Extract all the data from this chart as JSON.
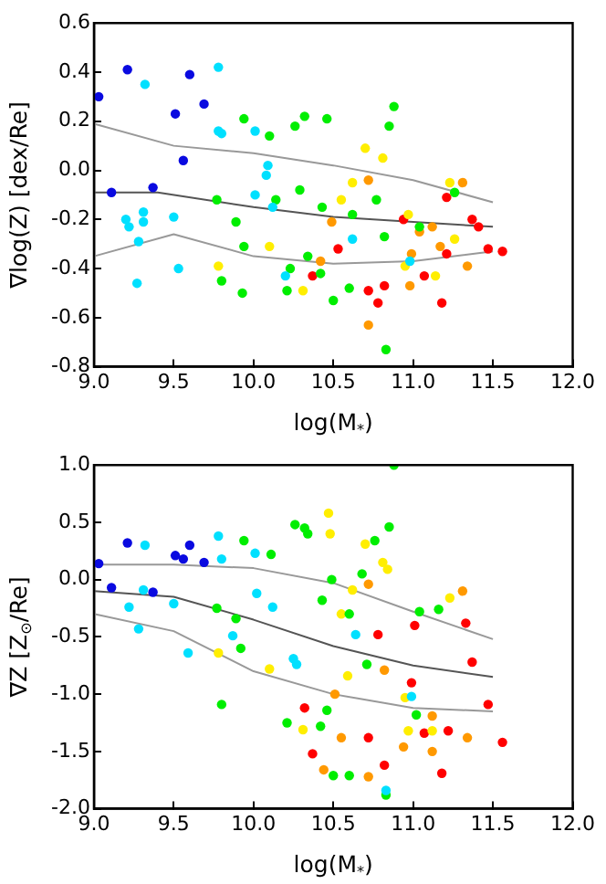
{
  "chart_data": [
    {
      "type": "scatter",
      "xlabel": "log(M$_{*}$)",
      "ylabel": "∇log(Z) [dex/Re]",
      "xlim": [
        9.0,
        12.0
      ],
      "ylim": [
        -0.8,
        0.6
      ],
      "grid": false,
      "legend": false,
      "marker": "circle",
      "xticks": [
        {
          "value": 9,
          "label": "9.0"
        },
        {
          "value": 9.5,
          "label": "9.5"
        },
        {
          "value": 10,
          "label": "10.0"
        },
        {
          "value": 10.5,
          "label": "10.5"
        },
        {
          "value": 11,
          "label": "11.0"
        },
        {
          "value": 11.5,
          "label": "11.5"
        },
        {
          "value": 12,
          "label": "12.0"
        }
      ],
      "yticks": [
        {
          "value": -0.8,
          "label": "-0.8"
        },
        {
          "value": -0.6,
          "label": "-0.6"
        },
        {
          "value": -0.4,
          "label": "-0.4"
        },
        {
          "value": -0.2,
          "label": "-0.2"
        },
        {
          "value": 0,
          "label": "0.0"
        },
        {
          "value": 0.2,
          "label": "0.2"
        },
        {
          "value": 0.4,
          "label": "0.4"
        },
        {
          "value": 0.6,
          "label": "0.6"
        }
      ],
      "series": [
        {
          "color": "#0a0ae0",
          "x": [
            9.03,
            9.21,
            9.51,
            9.56,
            9.6,
            9.69,
            9.11,
            9.37
          ],
          "values": [
            0.3,
            0.41,
            0.23,
            0.04,
            0.39,
            0.27,
            -0.09,
            -0.07
          ]
        },
        {
          "color": "#00e0ff",
          "x": [
            9.32,
            9.78,
            9.78,
            9.8,
            10.01,
            9.22,
            9.31,
            9.31,
            9.5,
            10.09,
            10.08,
            10.01,
            10.12,
            9.2,
            9.28,
            9.27,
            9.53,
            10.2,
            10.98,
            10.62
          ],
          "values": [
            0.35,
            0.42,
            0.16,
            0.15,
            0.16,
            -0.23,
            -0.17,
            -0.21,
            -0.19,
            0.02,
            -0.02,
            -0.1,
            -0.15,
            -0.2,
            -0.29,
            -0.46,
            -0.4,
            -0.43,
            -0.37,
            -0.28
          ]
        },
        {
          "color": "#00ee00",
          "x": [
            9.94,
            10.03,
            10.1,
            10.26,
            10.32,
            10.46,
            10.88,
            10.85,
            9.77,
            9.89,
            10.14,
            10.29,
            10.43,
            10.62,
            10.77,
            11.04,
            11.26,
            9.8,
            9.93,
            9.94,
            10.23,
            10.21,
            10.5,
            10.6,
            10.83,
            10.42,
            10.34,
            10.82
          ],
          "values": [
            0.21,
            null,
            0.14,
            0.18,
            0.22,
            0.21,
            0.26,
            0.18,
            -0.12,
            -0.21,
            -0.12,
            -0.08,
            -0.15,
            -0.18,
            -0.12,
            -0.23,
            -0.09,
            -0.45,
            -0.5,
            -0.31,
            -0.4,
            -0.49,
            -0.53,
            -0.48,
            -0.73,
            -0.42,
            -0.35,
            -0.27
          ]
        },
        {
          "color": "#ffee00",
          "x": [
            10.7,
            10.81,
            10.62,
            10.55,
            10.97,
            11.23,
            10.1,
            9.78,
            10.31,
            10.95,
            11.14,
            11.26
          ],
          "values": [
            0.09,
            0.05,
            -0.05,
            -0.12,
            -0.18,
            -0.05,
            -0.31,
            -0.39,
            -0.49,
            -0.39,
            -0.43,
            -0.28
          ]
        },
        {
          "color": "#ff9900",
          "x": [
            10.72,
            11.31,
            10.49,
            11.04,
            11.12,
            10.42,
            10.72,
            10.98,
            11.17,
            11.34,
            10.99
          ],
          "values": [
            -0.04,
            -0.05,
            -0.21,
            -0.25,
            -0.23,
            -0.37,
            -0.63,
            -0.47,
            -0.31,
            -0.39,
            -0.34
          ]
        },
        {
          "color": "#ff0000",
          "x": [
            11.21,
            10.94,
            11.37,
            11.41,
            10.37,
            10.72,
            10.82,
            10.78,
            11.07,
            11.18,
            11.47,
            11.56,
            11.21,
            10.53
          ],
          "values": [
            -0.11,
            -0.2,
            -0.2,
            -0.23,
            -0.43,
            -0.49,
            -0.47,
            -0.54,
            -0.43,
            -0.54,
            -0.32,
            -0.33,
            -0.34,
            -0.32
          ]
        },
        {
          "type": "line",
          "marker": "none",
          "color": "#999999",
          "x": [
            9.0,
            9.5,
            10.0,
            10.5,
            11.0,
            11.5
          ],
          "values": [
            0.19,
            0.1,
            0.07,
            0.02,
            -0.04,
            -0.13
          ]
        },
        {
          "type": "line",
          "marker": "none",
          "color": "#555555",
          "x": [
            9.0,
            9.4,
            10.0,
            10.5,
            11.0,
            11.5
          ],
          "values": [
            -0.09,
            -0.09,
            -0.15,
            -0.19,
            -0.21,
            -0.23
          ]
        },
        {
          "type": "line",
          "marker": "none",
          "color": "#999999",
          "x": [
            9.0,
            9.5,
            10.0,
            10.5,
            11.0,
            11.5
          ],
          "values": [
            -0.35,
            -0.26,
            -0.35,
            -0.38,
            -0.37,
            -0.33
          ]
        }
      ]
    },
    {
      "type": "scatter",
      "xlabel": "log(M$_{*}$)",
      "ylabel": "∇Z [Z$_{⊙}$/Re]",
      "xlim": [
        9.0,
        12.0
      ],
      "ylim": [
        -2.0,
        1.0
      ],
      "grid": false,
      "legend": false,
      "marker": "circle",
      "xticks": [
        {
          "value": 9,
          "label": "9.0"
        },
        {
          "value": 9.5,
          "label": "9.5"
        },
        {
          "value": 10,
          "label": "10.0"
        },
        {
          "value": 10.5,
          "label": "10.5"
        },
        {
          "value": 11,
          "label": "11.0"
        },
        {
          "value": 11.5,
          "label": "11.5"
        },
        {
          "value": 12,
          "label": "12.0"
        }
      ],
      "yticks": [
        {
          "value": -2,
          "label": "-2.0"
        },
        {
          "value": -1.5,
          "label": "-1.5"
        },
        {
          "value": -1,
          "label": "-1.0"
        },
        {
          "value": -0.5,
          "label": "-0.5"
        },
        {
          "value": 0,
          "label": "0.0"
        },
        {
          "value": 0.5,
          "label": "0.5"
        },
        {
          "value": 1,
          "label": "1.0"
        }
      ],
      "series": [
        {
          "color": "#0a0ae0",
          "x": [
            9.03,
            9.21,
            9.51,
            9.56,
            9.6,
            9.69,
            9.11,
            9.37
          ],
          "values": [
            0.14,
            0.32,
            0.21,
            0.18,
            0.3,
            0.15,
            -0.07,
            -0.11
          ]
        },
        {
          "color": "#00e0ff",
          "x": [
            9.32,
            9.78,
            9.8,
            10.01,
            9.22,
            9.28,
            9.31,
            9.5,
            9.59,
            9.87,
            10.02,
            10.12,
            10.27,
            10.64,
            10.25,
            10.83,
            10.99
          ],
          "values": [
            0.3,
            0.38,
            0.18,
            0.23,
            -0.24,
            -0.43,
            -0.09,
            -0.21,
            -0.64,
            -0.49,
            -0.12,
            -0.24,
            -0.74,
            -0.48,
            -0.69,
            -1.84,
            -1.02
          ]
        },
        {
          "color": "#00ee00",
          "x": [
            9.94,
            10.26,
            10.32,
            10.34,
            10.88,
            10.85,
            10.76,
            10.11,
            9.77,
            9.89,
            10.43,
            10.49,
            10.6,
            10.68,
            11.04,
            11.16,
            9.92,
            9.8,
            10.21,
            10.42,
            10.5,
            10.6,
            10.83,
            10.46,
            10.71,
            11.02
          ],
          "values": [
            0.34,
            0.48,
            0.45,
            0.4,
            1.0,
            0.46,
            0.34,
            0.22,
            -0.25,
            -0.34,
            -0.18,
            0.0,
            -0.3,
            0.05,
            -0.28,
            -0.26,
            -0.6,
            -1.09,
            -1.25,
            -1.28,
            -1.71,
            -1.71,
            -1.88,
            -1.14,
            -0.74,
            -1.18
          ]
        },
        {
          "color": "#ffee00",
          "x": [
            10.47,
            10.48,
            10.7,
            10.81,
            10.84,
            10.62,
            10.55,
            9.78,
            11.23,
            10.1,
            10.31,
            10.95,
            10.97,
            11.12,
            10.59
          ],
          "values": [
            0.58,
            0.4,
            0.31,
            0.15,
            0.09,
            -0.09,
            -0.3,
            -0.64,
            -0.16,
            -0.78,
            -1.31,
            -1.03,
            -1.32,
            -1.32,
            -0.84
          ]
        },
        {
          "color": "#ff9900",
          "x": [
            10.72,
            11.31,
            10.51,
            10.55,
            10.44,
            10.72,
            10.94,
            11.12,
            11.34,
            11.12,
            10.82
          ],
          "values": [
            -0.04,
            -0.1,
            -1.0,
            -1.38,
            -1.66,
            -1.72,
            -1.46,
            -1.5,
            -1.38,
            -1.19,
            -0.79
          ]
        },
        {
          "color": "#ff0000",
          "x": [
            11.33,
            11.01,
            10.78,
            10.32,
            10.37,
            10.72,
            10.82,
            11.07,
            11.18,
            11.22,
            11.47,
            11.56,
            11.37,
            10.99
          ],
          "values": [
            -0.38,
            -0.4,
            -0.48,
            -1.12,
            -1.52,
            -1.38,
            -1.62,
            -1.34,
            -1.69,
            -1.32,
            -1.09,
            -1.42,
            -0.72,
            -0.9
          ]
        },
        {
          "type": "line",
          "marker": "none",
          "color": "#999999",
          "x": [
            9.0,
            9.5,
            10.0,
            10.5,
            11.0,
            11.5
          ],
          "values": [
            0.13,
            0.13,
            0.1,
            -0.03,
            -0.28,
            -0.52
          ]
        },
        {
          "type": "line",
          "marker": "none",
          "color": "#555555",
          "x": [
            9.0,
            9.5,
            10.0,
            10.5,
            11.0,
            11.5
          ],
          "values": [
            -0.1,
            -0.15,
            -0.35,
            -0.58,
            -0.75,
            -0.85
          ]
        },
        {
          "type": "line",
          "marker": "none",
          "color": "#999999",
          "x": [
            9.0,
            9.5,
            10.0,
            10.5,
            11.0,
            11.5
          ],
          "values": [
            -0.3,
            -0.45,
            -0.8,
            -1.0,
            -1.12,
            -1.15
          ]
        }
      ]
    }
  ]
}
